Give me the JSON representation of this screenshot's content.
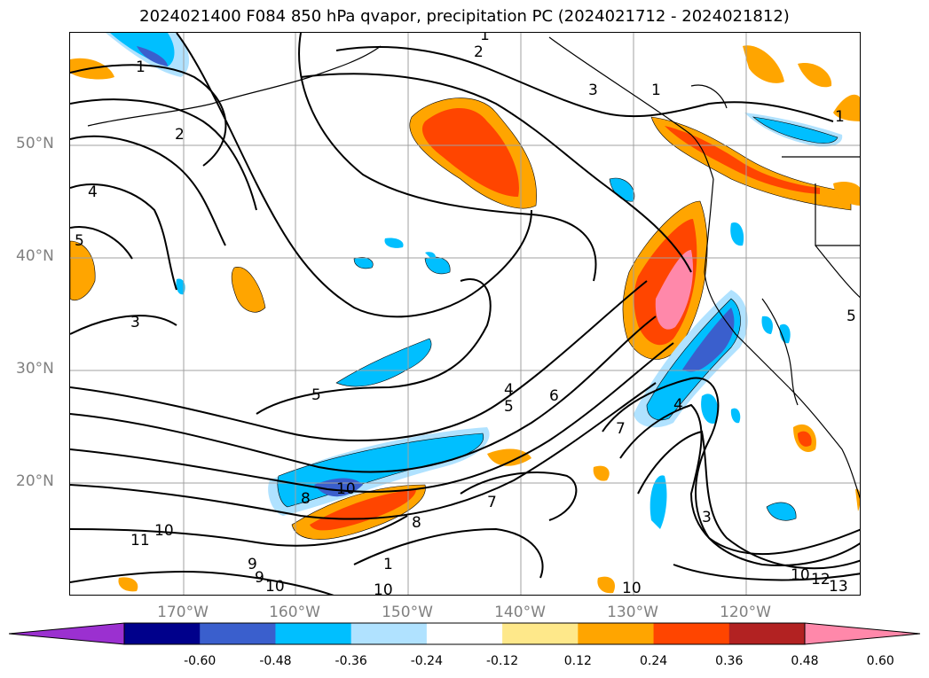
{
  "title": "2024021400 F084 850 hPa qvapor, precipitation PC (2024021712 - 2024021812)",
  "map": {
    "latitude_labels": [
      "50°N",
      "40°N",
      "30°N",
      "20°N"
    ],
    "longitude_labels": [
      "170°W",
      "160°W",
      "150°W",
      "140°W",
      "130°W",
      "120°W"
    ],
    "contour_labels": [
      "1",
      "2",
      "3",
      "4",
      "5",
      "6",
      "7",
      "8",
      "9",
      "10",
      "11",
      "12",
      "13"
    ],
    "gridline_color": "#a0a0a0",
    "coastline_color": "#000000"
  },
  "colorbar": {
    "ticks": [
      "-0.60",
      "-0.48",
      "-0.36",
      "-0.24",
      "-0.12",
      "0.12",
      "0.24",
      "0.36",
      "0.48",
      "0.60"
    ],
    "colors": [
      "#9b30d0",
      "#00008b",
      "#3a5fcd",
      "#00bfff",
      "#b0e2ff",
      "#ffffff",
      "#fee88a",
      "#ffa500",
      "#ff4500",
      "#b22222",
      "#ff88aa"
    ],
    "extend": "both"
  }
}
